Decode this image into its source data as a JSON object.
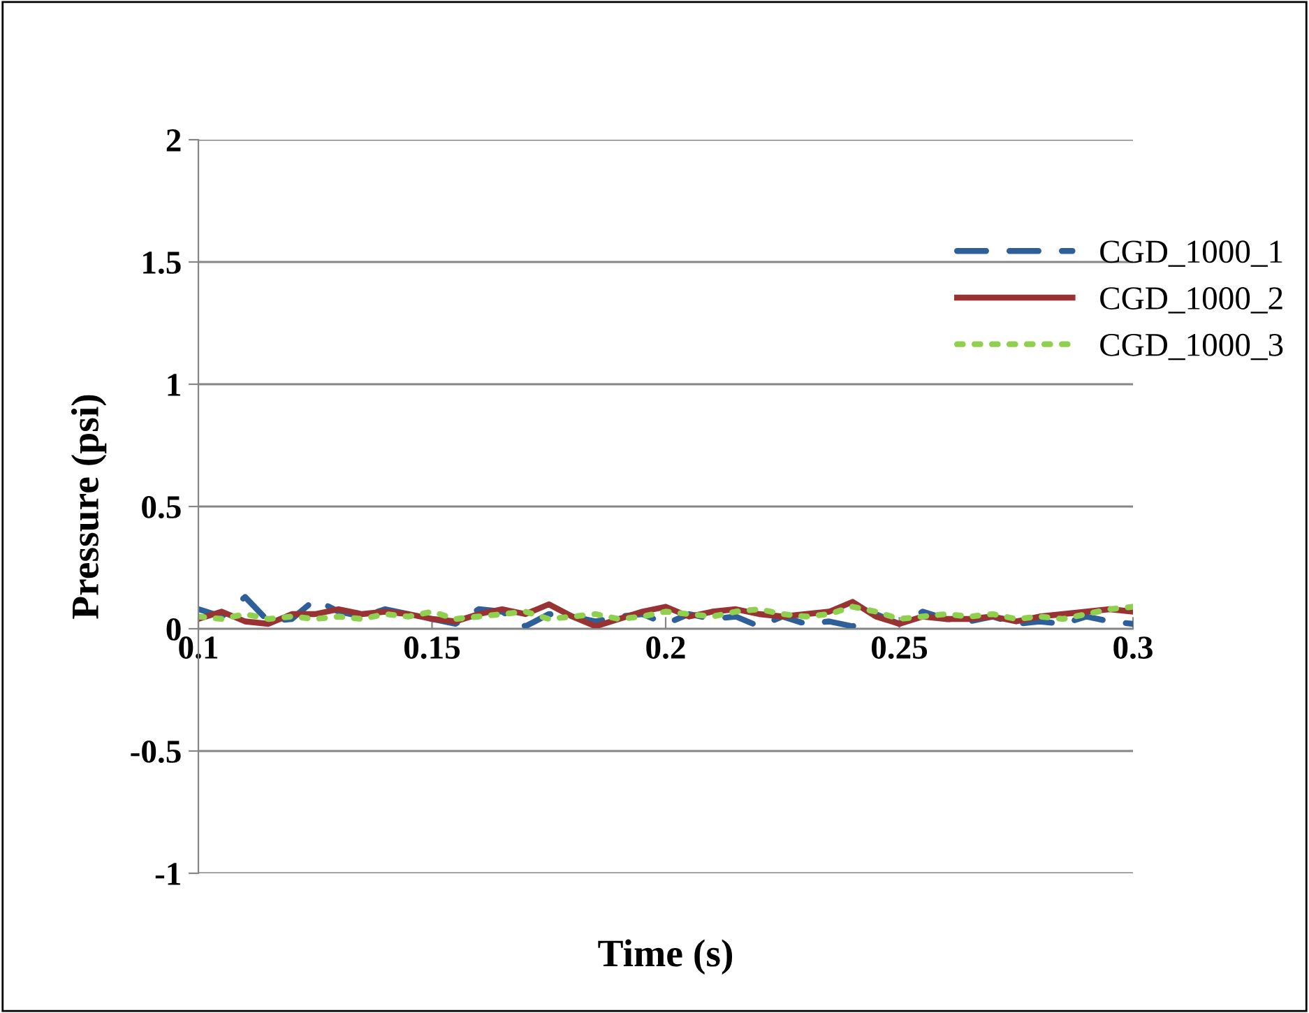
{
  "chart_data": {
    "type": "line",
    "xlabel": "Time (s)",
    "ylabel": "Pressure (psi)",
    "x": [
      0.1,
      0.105,
      0.11,
      0.115,
      0.12,
      0.125,
      0.13,
      0.135,
      0.14,
      0.145,
      0.15,
      0.155,
      0.16,
      0.165,
      0.17,
      0.175,
      0.18,
      0.185,
      0.19,
      0.195,
      0.2,
      0.205,
      0.21,
      0.215,
      0.22,
      0.225,
      0.23,
      0.235,
      0.24,
      0.245,
      0.25,
      0.255,
      0.26,
      0.265,
      0.27,
      0.275,
      0.28,
      0.285,
      0.29,
      0.295,
      0.3
    ],
    "series": [
      {
        "name": "CGD_1000_1",
        "color": "#2e5f99",
        "line_style": "dashed",
        "values": [
          0.08,
          0.05,
          0.13,
          0.03,
          0.04,
          0.12,
          0.07,
          0.05,
          0.08,
          0.06,
          0.04,
          0.02,
          0.08,
          0.07,
          0.01,
          0.06,
          0.05,
          0.03,
          0.05,
          0.06,
          0.02,
          0.06,
          0.04,
          0.05,
          0.01,
          0.05,
          0.02,
          0.03,
          0.01,
          0.06,
          0.02,
          0.07,
          0.04,
          0.03,
          0.05,
          0.02,
          0.03,
          0.02,
          0.05,
          0.03,
          0.02
        ]
      },
      {
        "name": "CGD_1000_2",
        "color": "#993333",
        "line_style": "solid",
        "values": [
          0.04,
          0.07,
          0.03,
          0.02,
          0.06,
          0.06,
          0.08,
          0.06,
          0.07,
          0.06,
          0.04,
          0.03,
          0.06,
          0.08,
          0.06,
          0.1,
          0.05,
          0.01,
          0.04,
          0.07,
          0.09,
          0.05,
          0.07,
          0.08,
          0.06,
          0.05,
          0.06,
          0.07,
          0.11,
          0.05,
          0.02,
          0.05,
          0.04,
          0.04,
          0.05,
          0.03,
          0.05,
          0.06,
          0.07,
          0.08,
          0.07
        ]
      },
      {
        "name": "CGD_1000_3",
        "color": "#8fd14f",
        "line_style": "dotted",
        "values": [
          0.05,
          0.04,
          0.06,
          0.04,
          0.05,
          0.04,
          0.05,
          0.04,
          0.06,
          0.05,
          0.07,
          0.04,
          0.05,
          0.06,
          0.07,
          0.04,
          0.05,
          0.06,
          0.04,
          0.05,
          0.07,
          0.06,
          0.05,
          0.07,
          0.08,
          0.06,
          0.05,
          0.06,
          0.09,
          0.07,
          0.04,
          0.05,
          0.06,
          0.05,
          0.06,
          0.04,
          0.05,
          0.04,
          0.06,
          0.08,
          0.09
        ]
      }
    ],
    "xlim": [
      0.1,
      0.3
    ],
    "xticks": [
      {
        "value": 0.1,
        "label": "0.1"
      },
      0.15,
      {
        "value": 0.2,
        "label": "0.2"
      },
      0.25,
      {
        "value": 0.3,
        "label": "0.3"
      }
    ],
    "ylim": [
      -1,
      2
    ],
    "yticks": [
      -1,
      -0.5,
      0,
      0.5,
      1,
      1.5,
      2
    ],
    "grid": "y",
    "legend": "right"
  }
}
